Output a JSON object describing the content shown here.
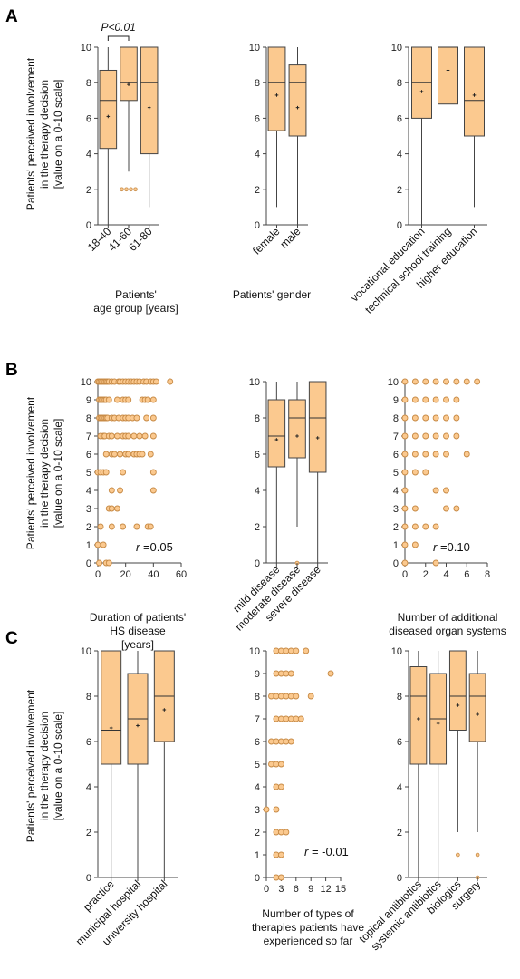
{
  "colors": {
    "fill": "#fbc98f",
    "stroke": "#c78a45",
    "axis": "#444444",
    "text": "#111111"
  },
  "panels": [
    {
      "letter": "A",
      "ylabel": [
        "Patients' perceived involvement",
        "in the therapy decision",
        "[value on a 0-10 scale]"
      ]
    },
    {
      "letter": "B",
      "ylabel": [
        "Patients' perceived involvement",
        "in the therapy decision",
        "[value on a 0-10 scale]"
      ]
    },
    {
      "letter": "C",
      "ylabel": [
        "Patients' perceived involvement",
        "in the therapy decision",
        "[value on a 0-10 scale]"
      ]
    }
  ],
  "chart_data": [
    {
      "id": "A1",
      "type": "box",
      "ylim": [
        0,
        10
      ],
      "yticks": [
        0,
        2,
        4,
        6,
        8,
        10
      ],
      "xlabel": [
        "Patients'",
        "age group [years]"
      ],
      "categories": [
        "18-40",
        "41-60",
        "61-80"
      ],
      "boxes": [
        {
          "min": 0,
          "q1": 4.3,
          "median": 7,
          "q3": 8.7,
          "max": 10,
          "mean": 6.1,
          "outliers": []
        },
        {
          "min": 3,
          "q1": 7,
          "median": 8,
          "q3": 10,
          "max": 10,
          "mean": 7.9,
          "outliers": [
            2,
            2,
            2,
            2
          ]
        },
        {
          "min": 1,
          "q1": 4,
          "median": 8,
          "q3": 10,
          "max": 10,
          "mean": 6.6,
          "outliers": []
        }
      ],
      "significance": {
        "label": "P<0.01",
        "from": 0,
        "to": 1
      }
    },
    {
      "id": "A2",
      "type": "box",
      "ylim": [
        0,
        10
      ],
      "yticks": [
        0,
        2,
        4,
        6,
        8,
        10
      ],
      "xlabel": [
        "Patients' gender"
      ],
      "categories": [
        "female",
        "male"
      ],
      "boxes": [
        {
          "min": 1,
          "q1": 5.3,
          "median": 8,
          "q3": 10,
          "max": 10,
          "mean": 7.3,
          "outliers": []
        },
        {
          "min": 0,
          "q1": 5,
          "median": 8,
          "q3": 9,
          "max": 10,
          "mean": 6.6,
          "outliers": []
        }
      ]
    },
    {
      "id": "A3",
      "type": "box",
      "ylim": [
        0,
        10
      ],
      "yticks": [
        0,
        2,
        4,
        6,
        8,
        10
      ],
      "xlabel": [],
      "categories": [
        "vocational education",
        "technical school training",
        "higher education"
      ],
      "boxes": [
        {
          "min": 0,
          "q1": 6,
          "median": 8,
          "q3": 10,
          "max": 10,
          "mean": 7.5,
          "outliers": []
        },
        {
          "min": 5,
          "q1": 6.8,
          "median": 10,
          "q3": 10,
          "max": 10,
          "mean": 8.7,
          "outliers": []
        },
        {
          "min": 1,
          "q1": 5,
          "median": 7,
          "q3": 10,
          "max": 10,
          "mean": 7.3,
          "outliers": []
        }
      ]
    },
    {
      "id": "B1",
      "type": "scatter",
      "ylim": [
        0,
        10
      ],
      "yticks": [
        0,
        1,
        2,
        3,
        4,
        5,
        6,
        7,
        8,
        9,
        10
      ],
      "xlim": [
        0,
        60
      ],
      "xticks": [
        0,
        20,
        40,
        60
      ],
      "xlabel": [
        "Duration of patients'",
        "HS disease",
        "[years]"
      ],
      "annotation": "=0.05",
      "points": [
        [
          0,
          10
        ],
        [
          1,
          10
        ],
        [
          2,
          10
        ],
        [
          3,
          10
        ],
        [
          4,
          10
        ],
        [
          5,
          10
        ],
        [
          6,
          10
        ],
        [
          7,
          10
        ],
        [
          8,
          10
        ],
        [
          10,
          10
        ],
        [
          12,
          10
        ],
        [
          15,
          10
        ],
        [
          16,
          10
        ],
        [
          18,
          10
        ],
        [
          20,
          10
        ],
        [
          22,
          10
        ],
        [
          24,
          10
        ],
        [
          26,
          10
        ],
        [
          28,
          10
        ],
        [
          30,
          10
        ],
        [
          33,
          10
        ],
        [
          35,
          10
        ],
        [
          38,
          10
        ],
        [
          40,
          10
        ],
        [
          42,
          10
        ],
        [
          52,
          10
        ],
        [
          1,
          9
        ],
        [
          2,
          9
        ],
        [
          3,
          9
        ],
        [
          4,
          9
        ],
        [
          5,
          9
        ],
        [
          6,
          9
        ],
        [
          8,
          9
        ],
        [
          14,
          9
        ],
        [
          18,
          9
        ],
        [
          20,
          9
        ],
        [
          22,
          9
        ],
        [
          32,
          9
        ],
        [
          34,
          9
        ],
        [
          36,
          9
        ],
        [
          40,
          9
        ],
        [
          1,
          8
        ],
        [
          2,
          8
        ],
        [
          3,
          8
        ],
        [
          4,
          8
        ],
        [
          5,
          8
        ],
        [
          6,
          8
        ],
        [
          7,
          8
        ],
        [
          10,
          8
        ],
        [
          12,
          8
        ],
        [
          15,
          8
        ],
        [
          18,
          8
        ],
        [
          20,
          8
        ],
        [
          22,
          8
        ],
        [
          25,
          8
        ],
        [
          28,
          8
        ],
        [
          35,
          8
        ],
        [
          40,
          8
        ],
        [
          2,
          7
        ],
        [
          4,
          7
        ],
        [
          5,
          7
        ],
        [
          8,
          7
        ],
        [
          10,
          7
        ],
        [
          14,
          7
        ],
        [
          18,
          7
        ],
        [
          20,
          7
        ],
        [
          22,
          7
        ],
        [
          26,
          7
        ],
        [
          30,
          7
        ],
        [
          34,
          7
        ],
        [
          40,
          7
        ],
        [
          6,
          6
        ],
        [
          10,
          6
        ],
        [
          12,
          6
        ],
        [
          16,
          6
        ],
        [
          20,
          6
        ],
        [
          22,
          6
        ],
        [
          26,
          6
        ],
        [
          28,
          6
        ],
        [
          30,
          6
        ],
        [
          32,
          6
        ],
        [
          38,
          6
        ],
        [
          0,
          5
        ],
        [
          2,
          5
        ],
        [
          4,
          5
        ],
        [
          6,
          5
        ],
        [
          18,
          5
        ],
        [
          40,
          5
        ],
        [
          10,
          4
        ],
        [
          16,
          4
        ],
        [
          40,
          4
        ],
        [
          8,
          3
        ],
        [
          10,
          3
        ],
        [
          14,
          3
        ],
        [
          2,
          2
        ],
        [
          10,
          2
        ],
        [
          18,
          2
        ],
        [
          28,
          2
        ],
        [
          36,
          2
        ],
        [
          38,
          2
        ],
        [
          0,
          1
        ],
        [
          4,
          1
        ],
        [
          1,
          0
        ],
        [
          6,
          0
        ],
        [
          8,
          0
        ]
      ]
    },
    {
      "id": "B2",
      "type": "box",
      "ylim": [
        0,
        10
      ],
      "yticks": [
        0,
        2,
        4,
        6,
        8,
        10
      ],
      "xlabel": [],
      "categories": [
        "mild disease",
        "moderate disease",
        "severe disease"
      ],
      "boxes": [
        {
          "min": 0,
          "q1": 5.3,
          "median": 7,
          "q3": 9,
          "max": 10,
          "mean": 6.8,
          "outliers": []
        },
        {
          "min": 2,
          "q1": 5.8,
          "median": 8,
          "q3": 9,
          "max": 10,
          "mean": 7,
          "outliers": [
            0
          ]
        },
        {
          "min": 0,
          "q1": 5,
          "median": 8,
          "q3": 10,
          "max": 10,
          "mean": 6.9,
          "outliers": []
        }
      ]
    },
    {
      "id": "B3",
      "type": "scatter",
      "ylim": [
        0,
        10
      ],
      "yticks": [
        0,
        1,
        2,
        3,
        4,
        5,
        6,
        7,
        8,
        9,
        10
      ],
      "xlim": [
        0,
        8
      ],
      "xticks": [
        0,
        2,
        4,
        6,
        8
      ],
      "xlabel": [
        "Number of additional",
        "diseased organ systems"
      ],
      "annotation": "=0.10",
      "points": [
        [
          0,
          10
        ],
        [
          1,
          10
        ],
        [
          2,
          10
        ],
        [
          3,
          10
        ],
        [
          4,
          10
        ],
        [
          5,
          10
        ],
        [
          6,
          10
        ],
        [
          7,
          10
        ],
        [
          0,
          9
        ],
        [
          1,
          9
        ],
        [
          2,
          9
        ],
        [
          3,
          9
        ],
        [
          4,
          9
        ],
        [
          5,
          9
        ],
        [
          0,
          8
        ],
        [
          1,
          8
        ],
        [
          2,
          8
        ],
        [
          3,
          8
        ],
        [
          4,
          8
        ],
        [
          5,
          8
        ],
        [
          0,
          7
        ],
        [
          1,
          7
        ],
        [
          2,
          7
        ],
        [
          3,
          7
        ],
        [
          4,
          7
        ],
        [
          5,
          7
        ],
        [
          0,
          6
        ],
        [
          1,
          6
        ],
        [
          2,
          6
        ],
        [
          3,
          6
        ],
        [
          4,
          6
        ],
        [
          6,
          6
        ],
        [
          0,
          5
        ],
        [
          1,
          5
        ],
        [
          2,
          5
        ],
        [
          0,
          4
        ],
        [
          3,
          4
        ],
        [
          4,
          4
        ],
        [
          0,
          3
        ],
        [
          1,
          3
        ],
        [
          4,
          3
        ],
        [
          5,
          3
        ],
        [
          0,
          2
        ],
        [
          1,
          2
        ],
        [
          2,
          2
        ],
        [
          3,
          2
        ],
        [
          0,
          1
        ],
        [
          1,
          1
        ],
        [
          0,
          0
        ],
        [
          3,
          0
        ]
      ]
    },
    {
      "id": "C1",
      "type": "box",
      "ylim": [
        0,
        10
      ],
      "yticks": [
        0,
        2,
        4,
        6,
        8,
        10
      ],
      "xlabel": [],
      "categories": [
        "practice",
        "municipal hospital",
        "university hospital"
      ],
      "boxes": [
        {
          "min": 0,
          "q1": 5,
          "median": 6.5,
          "q3": 10,
          "max": 10,
          "mean": 6.6,
          "outliers": []
        },
        {
          "min": 0,
          "q1": 5,
          "median": 7,
          "q3": 9,
          "max": 10,
          "mean": 6.7,
          "outliers": []
        },
        {
          "min": 0,
          "q1": 6,
          "median": 8,
          "q3": 10,
          "max": 10,
          "mean": 7.4,
          "outliers": []
        }
      ]
    },
    {
      "id": "C2",
      "type": "scatter",
      "ylim": [
        0,
        10
      ],
      "yticks": [
        0,
        1,
        2,
        3,
        4,
        5,
        6,
        7,
        8,
        9,
        10
      ],
      "xlim": [
        0,
        15
      ],
      "xticks": [
        0,
        3,
        6,
        9,
        12,
        15
      ],
      "xlabel": [
        "Number of types of",
        "therapies patients have",
        "experienced so far"
      ],
      "annotation": "= -0.01",
      "points": [
        [
          2,
          10
        ],
        [
          3,
          10
        ],
        [
          4,
          10
        ],
        [
          5,
          10
        ],
        [
          6,
          10
        ],
        [
          8,
          10
        ],
        [
          2,
          9
        ],
        [
          3,
          9
        ],
        [
          4,
          9
        ],
        [
          5,
          9
        ],
        [
          13,
          9
        ],
        [
          1,
          8
        ],
        [
          2,
          8
        ],
        [
          3,
          8
        ],
        [
          4,
          8
        ],
        [
          5,
          8
        ],
        [
          6,
          8
        ],
        [
          9,
          8
        ],
        [
          2,
          7
        ],
        [
          3,
          7
        ],
        [
          4,
          7
        ],
        [
          5,
          7
        ],
        [
          6,
          7
        ],
        [
          7,
          7
        ],
        [
          1,
          6
        ],
        [
          2,
          6
        ],
        [
          3,
          6
        ],
        [
          4,
          6
        ],
        [
          5,
          6
        ],
        [
          1,
          5
        ],
        [
          2,
          5
        ],
        [
          3,
          5
        ],
        [
          2,
          4
        ],
        [
          3,
          4
        ],
        [
          0,
          3
        ],
        [
          2,
          3
        ],
        [
          2,
          2
        ],
        [
          3,
          2
        ],
        [
          4,
          2
        ],
        [
          2,
          1
        ],
        [
          3,
          1
        ],
        [
          2,
          0
        ],
        [
          3,
          0
        ]
      ]
    },
    {
      "id": "C3",
      "type": "box",
      "ylim": [
        0,
        10
      ],
      "yticks": [
        0,
        2,
        4,
        6,
        8,
        10
      ],
      "xlabel": [],
      "categories": [
        "topical antibiotics",
        "systemic antibiotics",
        "biologics",
        "surgery"
      ],
      "boxes": [
        {
          "min": 0,
          "q1": 5,
          "median": 8,
          "q3": 9.3,
          "max": 10,
          "mean": 7,
          "outliers": []
        },
        {
          "min": 0,
          "q1": 5,
          "median": 7,
          "q3": 9,
          "max": 10,
          "mean": 6.8,
          "outliers": []
        },
        {
          "min": 2,
          "q1": 6.5,
          "median": 8,
          "q3": 10,
          "max": 10,
          "mean": 7.6,
          "outliers": [
            1
          ]
        },
        {
          "min": 2,
          "q1": 6,
          "median": 8,
          "q3": 9,
          "max": 10,
          "mean": 7.2,
          "outliers": [
            1,
            0
          ]
        }
      ]
    }
  ]
}
